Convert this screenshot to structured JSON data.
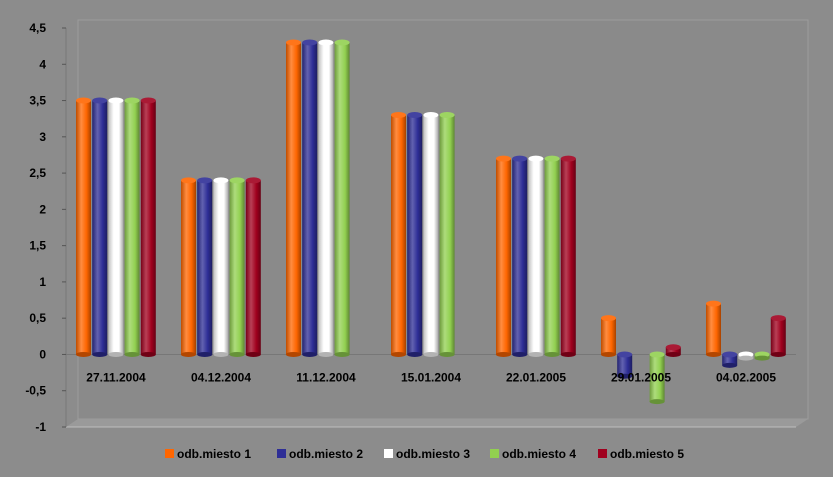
{
  "chart_data": {
    "type": "bar",
    "categories": [
      "27.11.2004",
      "04.12.2004",
      "11.12.2004",
      "15.01.2004",
      "22.01.2005",
      "29.01.2005",
      "04.02.2005"
    ],
    "series": [
      {
        "name": "odb.miesto 1",
        "color": "#ff6600",
        "values": [
          3.5,
          2.4,
          4.3,
          3.3,
          2.7,
          0.5,
          0.7
        ]
      },
      {
        "name": "odb.miesto 2",
        "color": "#2e2e96",
        "values": [
          3.5,
          2.4,
          4.3,
          3.3,
          2.7,
          -0.3,
          -0.15
        ]
      },
      {
        "name": "odb.miesto 3",
        "color": "#ffffff",
        "values": [
          3.5,
          2.4,
          4.3,
          3.3,
          2.7,
          null,
          -0.05
        ]
      },
      {
        "name": "odb.miesto 4",
        "color": "#92d050",
        "values": [
          3.5,
          2.4,
          4.3,
          3.3,
          2.7,
          -0.65,
          -0.05
        ]
      },
      {
        "name": "odb.miesto 5",
        "color": "#a0001e",
        "values": [
          3.5,
          2.4,
          null,
          null,
          2.7,
          0.1,
          0.5
        ]
      }
    ],
    "ylim": [
      -1,
      4.5
    ],
    "yticks": [
      "-1",
      "-0,5",
      "0",
      "0,5",
      "1",
      "1,5",
      "2",
      "2,5",
      "3",
      "3,5",
      "4",
      "4,5"
    ],
    "grid": false,
    "legend": "bottom",
    "title": "",
    "xlabel": "",
    "ylabel": ""
  }
}
